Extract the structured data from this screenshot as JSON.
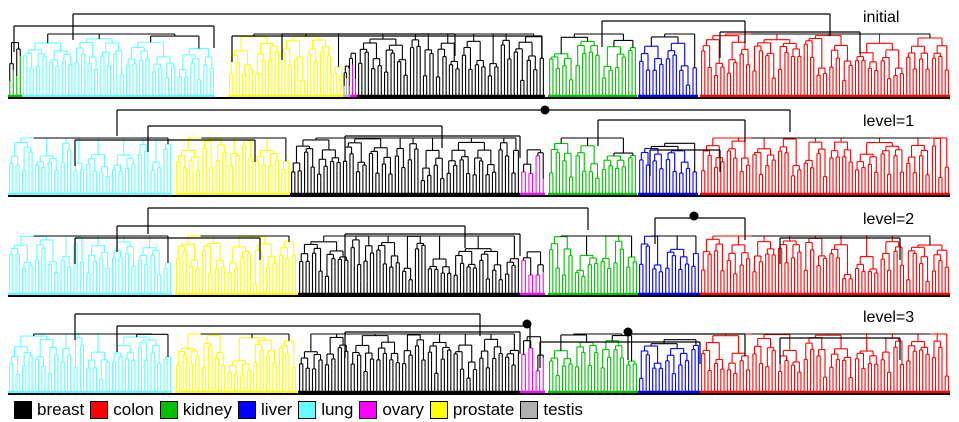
{
  "panels": [
    {
      "label": "initial",
      "cut_markers": []
    },
    {
      "label": "level=1",
      "cut_markers": [
        "root"
      ]
    },
    {
      "label": "level=2",
      "cut_markers": [
        "kidney-liver-colon-split"
      ]
    },
    {
      "label": "level=3",
      "cut_markers": [
        "lung-prostate-breast-split",
        "kidney-liver-colon-split"
      ]
    }
  ],
  "legend": [
    {
      "label": "breast",
      "color": "#000000"
    },
    {
      "label": "colon",
      "color": "#ff0000"
    },
    {
      "label": "kidney",
      "color": "#00c000"
    },
    {
      "label": "liver",
      "color": "#0000ff"
    },
    {
      "label": "lung",
      "color": "#66ffff"
    },
    {
      "label": "ovary",
      "color": "#ff00ff"
    },
    {
      "label": "prostate",
      "color": "#ffff00"
    },
    {
      "label": "testis",
      "color": "#b0b0b0"
    }
  ],
  "panel_orders": [
    [
      "kidney",
      "lung",
      "prostate",
      "ovary",
      "breast",
      "testis",
      "kidney",
      "liver",
      "colon"
    ],
    [
      "lung",
      "prostate",
      "breast",
      "ovary",
      "kidney",
      "liver",
      "colon"
    ],
    [
      "lung",
      "prostate",
      "breast",
      "ovary",
      "kidney",
      "liver",
      "colon"
    ],
    [
      "lung",
      "prostate",
      "breast",
      "ovary",
      "kidney",
      "liver",
      "colon"
    ]
  ]
}
